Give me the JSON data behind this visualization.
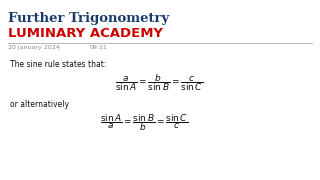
{
  "title1": "Further Trigonometry",
  "title2": "LUMINARY ACADEMY",
  "date_text": "20 January 2024",
  "time_text": "09:11",
  "body_intro": "The sine rule states that:",
  "alt_text": "or alternatively",
  "bg_color": "#ffffff",
  "title1_color": "#1a3a6b",
  "title2_color": "#cc0000",
  "body_color": "#111111",
  "meta_color": "#888888",
  "separator_color": "#aaaaaa",
  "title1_fontsize": 9.5,
  "title2_fontsize": 9.5,
  "meta_fontsize": 4.5,
  "body_fontsize": 5.5,
  "formula_fontsize": 6.5
}
